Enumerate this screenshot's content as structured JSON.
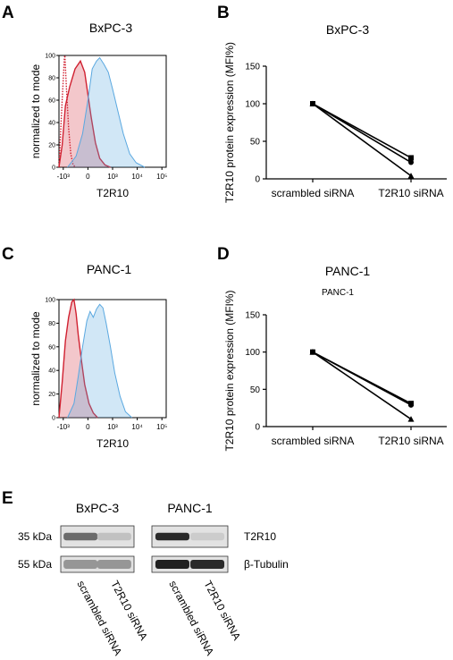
{
  "panels": {
    "A": {
      "letter": "A",
      "title": "BxPC-3"
    },
    "B": {
      "letter": "B",
      "title": "BxPC-3"
    },
    "C": {
      "letter": "C",
      "title": "PANC-1"
    },
    "D": {
      "letter": "D",
      "title": "PANC-1",
      "subtitle": "PANC-1"
    },
    "E": {
      "letter": "E"
    }
  },
  "chart_data": [
    {
      "panel": "A",
      "type": "area",
      "title": "BxPC-3",
      "xlabel": "T2R10",
      "ylabel": "normalized to mode",
      "x_scale": "log",
      "xticks": [
        "-10³",
        "0",
        "10³",
        "10⁴",
        "10⁵"
      ],
      "yticks": [
        0,
        20,
        40,
        60,
        80,
        100
      ],
      "ylim": [
        0,
        100
      ],
      "series_colors": {
        "isotype": "#d02030",
        "antibody": "#5aa8e0"
      },
      "series": [
        {
          "key": "isotype_dotted",
          "x": [
            0.0,
            0.03,
            0.05,
            0.055,
            0.07,
            0.09,
            0.11,
            0.13,
            0.15
          ],
          "values": [
            0,
            60,
            97,
            100,
            70,
            35,
            12,
            3,
            0
          ]
        },
        {
          "key": "isotype",
          "x": [
            0.0,
            0.03,
            0.06,
            0.1,
            0.15,
            0.2,
            0.24,
            0.27,
            0.3,
            0.34,
            0.38,
            0.43,
            0.48
          ],
          "values": [
            0,
            20,
            55,
            72,
            88,
            95,
            85,
            65,
            45,
            22,
            8,
            2,
            0
          ]
        },
        {
          "key": "antibody",
          "x": [
            0.08,
            0.16,
            0.22,
            0.27,
            0.31,
            0.35,
            0.38,
            0.42,
            0.46,
            0.5,
            0.55,
            0.6,
            0.66,
            0.72,
            0.8
          ],
          "values": [
            0,
            10,
            30,
            60,
            88,
            95,
            98,
            92,
            85,
            70,
            50,
            30,
            12,
            4,
            0
          ]
        }
      ]
    },
    {
      "panel": "B",
      "type": "line",
      "title": "BxPC-3",
      "ylabel": "T2R10 protein expression (MFI%)",
      "categories": [
        "scrambled siRNA",
        "T2R10 siRNA"
      ],
      "yticks": [
        0,
        50,
        100,
        150
      ],
      "ylim": [
        0,
        150
      ],
      "series": [
        {
          "marker": "square",
          "values": [
            100,
            28
          ]
        },
        {
          "marker": "circle",
          "values": [
            100,
            22
          ]
        },
        {
          "marker": "triangle",
          "values": [
            100,
            4
          ]
        }
      ]
    },
    {
      "panel": "C",
      "type": "area",
      "title": "PANC-1",
      "xlabel": "T2R10",
      "ylabel": "normalized to mode",
      "x_scale": "log",
      "xticks": [
        "-10³",
        "0",
        "10³",
        "10⁴",
        "10⁵"
      ],
      "yticks": [
        0,
        20,
        40,
        60,
        80,
        100
      ],
      "ylim": [
        0,
        100
      ],
      "series_colors": {
        "isotype": "#d02030",
        "antibody": "#5aa8e0"
      },
      "series": [
        {
          "key": "isotype",
          "x": [
            0.0,
            0.03,
            0.06,
            0.09,
            0.12,
            0.14,
            0.16,
            0.18,
            0.21,
            0.24,
            0.28,
            0.32,
            0.36
          ],
          "values": [
            0,
            30,
            65,
            85,
            98,
            100,
            88,
            70,
            48,
            28,
            12,
            4,
            0
          ]
        },
        {
          "key": "antibody",
          "x": [
            0.08,
            0.14,
            0.18,
            0.22,
            0.26,
            0.29,
            0.32,
            0.35,
            0.38,
            0.41,
            0.44,
            0.48,
            0.52,
            0.57,
            0.62,
            0.68
          ],
          "values": [
            0,
            12,
            35,
            60,
            82,
            90,
            85,
            92,
            96,
            93,
            80,
            60,
            38,
            18,
            5,
            0
          ]
        }
      ]
    },
    {
      "panel": "D",
      "type": "line",
      "title": "PANC-1",
      "subtitle": "PANC-1",
      "ylabel": "T2R10 protein expression (MFI%)",
      "categories": [
        "scrambled siRNA",
        "T2R10 siRNA"
      ],
      "yticks": [
        0,
        50,
        100,
        150
      ],
      "ylim": [
        0,
        150
      ],
      "series": [
        {
          "marker": "square",
          "values": [
            100,
            31
          ]
        },
        {
          "marker": "circle",
          "values": [
            100,
            29
          ]
        },
        {
          "marker": "triangle",
          "values": [
            100,
            10
          ]
        }
      ]
    },
    {
      "panel": "E",
      "type": "western-blot",
      "groups": [
        "BxPC-3",
        "PANC-1"
      ],
      "lanes": [
        "scrambled siRNA",
        "T2R10 siRNA"
      ],
      "rows": [
        {
          "size": "35 kDa",
          "protein": "T2R10",
          "intensity": [
            [
              0.55,
              0.15
            ],
            [
              0.85,
              0.1
            ]
          ]
        },
        {
          "size": "55 kDa",
          "protein": "β-Tubulin",
          "intensity": [
            [
              0.35,
              0.35
            ],
            [
              0.9,
              0.85
            ]
          ]
        }
      ]
    }
  ]
}
